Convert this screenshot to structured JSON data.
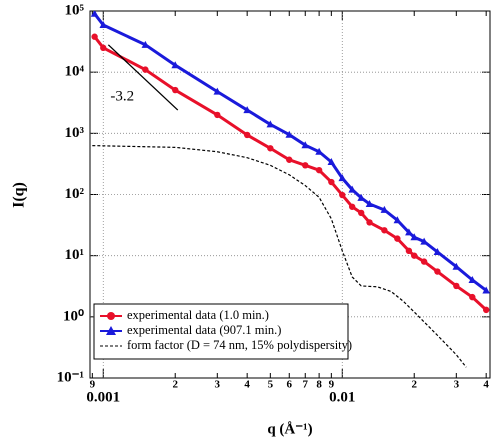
{
  "chart_data": {
    "type": "line",
    "log_x": true,
    "log_y": true,
    "grid": true,
    "legend": "lower left",
    "x_label": "q (Å⁻¹)",
    "y_label": "I(q)",
    "xlim": [
      0.00088,
      0.0415
    ],
    "ylim": [
      0.1,
      100000
    ],
    "xticks": [
      {
        "value": 0.0009,
        "label": "9"
      },
      {
        "value": 0.001,
        "label": "0.001"
      },
      {
        "value": 0.002,
        "label": "2"
      },
      {
        "value": 0.003,
        "label": "3"
      },
      {
        "value": 0.004,
        "label": "4"
      },
      {
        "value": 0.005,
        "label": "5"
      },
      {
        "value": 0.006,
        "label": "6"
      },
      {
        "value": 0.007,
        "label": "7"
      },
      {
        "value": 0.008,
        "label": "8"
      },
      {
        "value": 0.009,
        "label": "9"
      },
      {
        "value": 0.01,
        "label": "0.01"
      },
      {
        "value": 0.02,
        "label": "2"
      },
      {
        "value": 0.03,
        "label": "3"
      },
      {
        "value": 0.04,
        "label": "4"
      }
    ],
    "yticks": [
      {
        "value": 0.1,
        "label": "10⁻¹"
      },
      {
        "value": 1,
        "label": "10⁰"
      },
      {
        "value": 10,
        "label": "10¹"
      },
      {
        "value": 100,
        "label": "10²"
      },
      {
        "value": 1000,
        "label": "10³"
      },
      {
        "value": 10000,
        "label": "10⁴"
      },
      {
        "value": 100000,
        "label": "10⁵"
      }
    ],
    "series": [
      {
        "name": "experimental data (1.0 min.)",
        "color": "#e8102a",
        "marker": "circle",
        "x": [
          0.00092,
          0.001,
          0.0015,
          0.002,
          0.003,
          0.004,
          0.005,
          0.006,
          0.007,
          0.008,
          0.009,
          0.01,
          0.011,
          0.012,
          0.013,
          0.015,
          0.017,
          0.019,
          0.02,
          0.022,
          0.025,
          0.03,
          0.035,
          0.04
        ],
        "values": [
          38000,
          25000,
          11000,
          5100,
          2000,
          940,
          570,
          370,
          300,
          250,
          160,
          98,
          63,
          50,
          35,
          26,
          19,
          12,
          10,
          8,
          5.5,
          3.2,
          2.1,
          1.3
        ]
      },
      {
        "name": "experimental data (907.1 min.)",
        "color": "#1a1adb",
        "marker": "triangle",
        "x": [
          0.00092,
          0.001,
          0.0015,
          0.002,
          0.003,
          0.004,
          0.005,
          0.006,
          0.007,
          0.008,
          0.009,
          0.01,
          0.011,
          0.012,
          0.013,
          0.015,
          0.017,
          0.019,
          0.02,
          0.022,
          0.025,
          0.03,
          0.035,
          0.04
        ],
        "values": [
          90000,
          59000,
          28000,
          13000,
          4800,
          2400,
          1400,
          950,
          640,
          500,
          340,
          185,
          120,
          88,
          70,
          56,
          38,
          24,
          20,
          17,
          11.5,
          6.6,
          4,
          2.7
        ]
      },
      {
        "name": "form factor (D = 74 nm, 15% polydispersity)",
        "color": "#000000",
        "marker": "dashed",
        "x": [
          0.0009,
          0.002,
          0.003,
          0.004,
          0.005,
          0.006,
          0.007,
          0.008,
          0.009,
          0.01,
          0.011,
          0.012,
          0.014,
          0.016,
          0.018,
          0.02,
          0.025,
          0.03,
          0.033
        ],
        "values": [
          630,
          590,
          500,
          400,
          300,
          210,
          140,
          90,
          40,
          12,
          4.5,
          3.2,
          3.1,
          2.6,
          1.8,
          1.2,
          0.5,
          0.24,
          0.15
        ]
      }
    ],
    "reference_line": {
      "label": "-3.2",
      "x": [
        0.00105,
        0.00205
      ],
      "values": [
        28000,
        2400
      ]
    }
  }
}
